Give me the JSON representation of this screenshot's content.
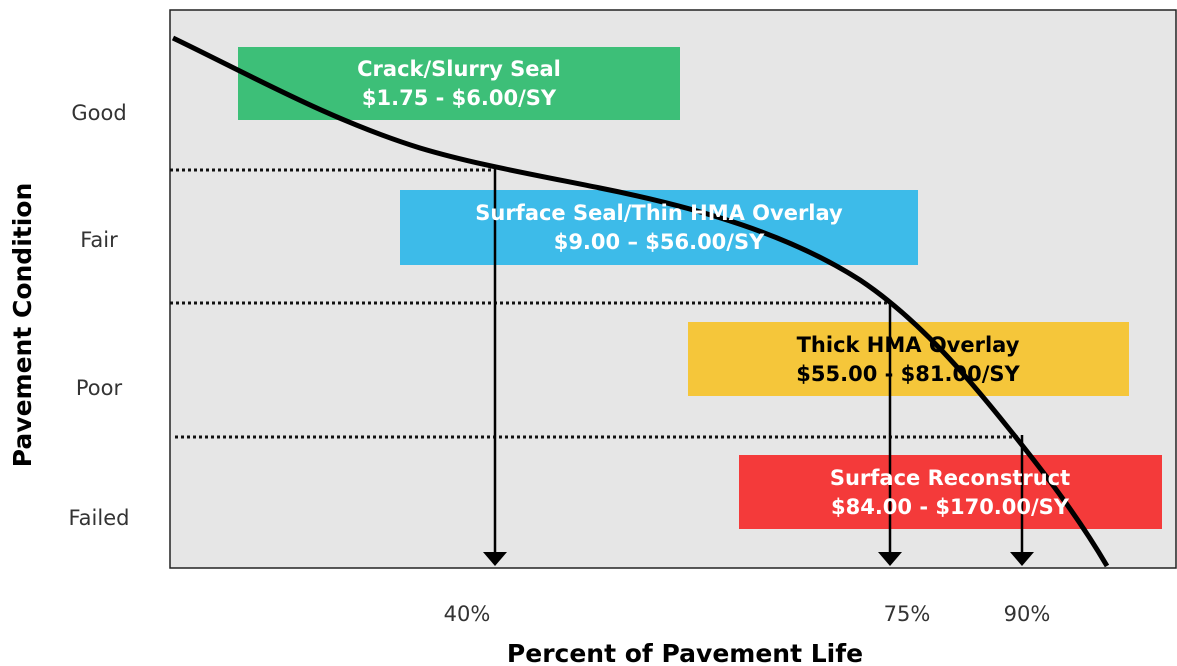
{
  "y_axis": {
    "title": "Pavement Condition",
    "labels": [
      "Good",
      "Fair",
      "Poor",
      "Failed"
    ]
  },
  "x_axis": {
    "title": "Percent of Pavement Life",
    "labels": [
      "40%",
      "75%",
      "90%"
    ]
  },
  "boxes": [
    {
      "title": "Crack/Slurry Seal",
      "cost": "$1.75 - $6.00/SY"
    },
    {
      "title": "Surface Seal/Thin HMA Overlay",
      "cost": "$9.00 – $56.00/SY"
    },
    {
      "title": "Thick HMA Overlay",
      "cost": "$55.00 - $81.00/SY"
    },
    {
      "title": "Surface Reconstruct",
      "cost": "$84.00 - $170.00/SY"
    }
  ]
}
